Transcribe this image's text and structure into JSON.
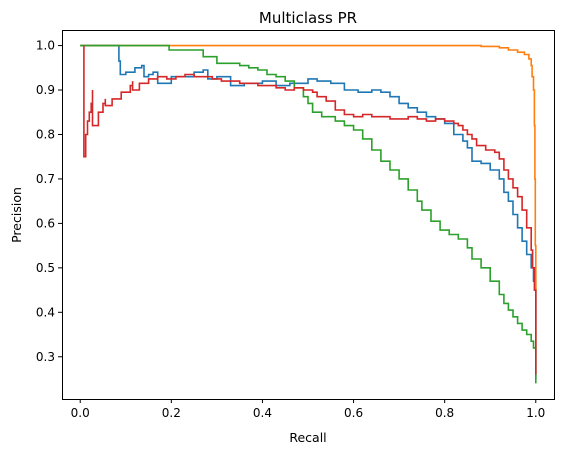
{
  "chart_data": {
    "type": "line",
    "title": "Multiclass PR",
    "xlabel": "Recall",
    "ylabel": "Precision",
    "xlim": [
      -0.04,
      1.04
    ],
    "ylim": [
      0.205,
      1.035
    ],
    "xticks": [
      0.0,
      0.2,
      0.4,
      0.6,
      0.8,
      1.0
    ],
    "xtick_labels": [
      "0.0",
      "0.2",
      "0.4",
      "0.6",
      "0.8",
      "1.0"
    ],
    "yticks": [
      0.3,
      0.4,
      0.5,
      0.6,
      0.7,
      0.8,
      0.9,
      1.0
    ],
    "ytick_labels": [
      "0.3",
      "0.4",
      "0.5",
      "0.6",
      "0.7",
      "0.8",
      "0.9",
      "1.0"
    ],
    "grid": false,
    "legend": "none",
    "series": [
      {
        "color": "#1f77b4",
        "points": [
          [
            0.0,
            1.0
          ],
          [
            0.085,
            1.0
          ],
          [
            0.085,
            0.965
          ],
          [
            0.088,
            0.935
          ],
          [
            0.1,
            0.94
          ],
          [
            0.12,
            0.95
          ],
          [
            0.135,
            0.955
          ],
          [
            0.14,
            0.93
          ],
          [
            0.15,
            0.935
          ],
          [
            0.16,
            0.94
          ],
          [
            0.17,
            0.915
          ],
          [
            0.2,
            0.93
          ],
          [
            0.25,
            0.94
          ],
          [
            0.27,
            0.945
          ],
          [
            0.28,
            0.925
          ],
          [
            0.3,
            0.93
          ],
          [
            0.33,
            0.91
          ],
          [
            0.36,
            0.915
          ],
          [
            0.4,
            0.92
          ],
          [
            0.43,
            0.91
          ],
          [
            0.46,
            0.915
          ],
          [
            0.5,
            0.925
          ],
          [
            0.52,
            0.92
          ],
          [
            0.55,
            0.915
          ],
          [
            0.58,
            0.9
          ],
          [
            0.61,
            0.895
          ],
          [
            0.64,
            0.9
          ],
          [
            0.66,
            0.895
          ],
          [
            0.68,
            0.885
          ],
          [
            0.7,
            0.87
          ],
          [
            0.72,
            0.86
          ],
          [
            0.74,
            0.85
          ],
          [
            0.76,
            0.84
          ],
          [
            0.78,
            0.835
          ],
          [
            0.8,
            0.825
          ],
          [
            0.82,
            0.8
          ],
          [
            0.84,
            0.785
          ],
          [
            0.85,
            0.77
          ],
          [
            0.86,
            0.74
          ],
          [
            0.88,
            0.735
          ],
          [
            0.9,
            0.72
          ],
          [
            0.92,
            0.7
          ],
          [
            0.93,
            0.67
          ],
          [
            0.94,
            0.65
          ],
          [
            0.95,
            0.62
          ],
          [
            0.96,
            0.59
          ],
          [
            0.97,
            0.56
          ],
          [
            0.98,
            0.53
          ],
          [
            0.99,
            0.5
          ],
          [
            0.995,
            0.47
          ],
          [
            1.0,
            0.41
          ],
          [
            1.0,
            0.25
          ]
        ]
      },
      {
        "color": "#ff7f0e",
        "points": [
          [
            0.0,
            1.0
          ],
          [
            0.86,
            1.0
          ],
          [
            0.88,
            0.998
          ],
          [
            0.92,
            0.995
          ],
          [
            0.94,
            0.99
          ],
          [
            0.96,
            0.985
          ],
          [
            0.975,
            0.98
          ],
          [
            0.985,
            0.97
          ],
          [
            0.99,
            0.955
          ],
          [
            0.992,
            0.93
          ],
          [
            0.995,
            0.9
          ],
          [
            0.997,
            0.82
          ],
          [
            0.998,
            0.7
          ],
          [
            0.999,
            0.55
          ],
          [
            1.0,
            0.41
          ],
          [
            1.0,
            0.32
          ]
        ]
      },
      {
        "color": "#2ca02c",
        "points": [
          [
            0.0,
            1.0
          ],
          [
            0.195,
            1.0
          ],
          [
            0.195,
            0.99
          ],
          [
            0.27,
            0.99
          ],
          [
            0.27,
            0.975
          ],
          [
            0.3,
            0.975
          ],
          [
            0.3,
            0.96
          ],
          [
            0.35,
            0.955
          ],
          [
            0.37,
            0.95
          ],
          [
            0.39,
            0.945
          ],
          [
            0.41,
            0.935
          ],
          [
            0.43,
            0.93
          ],
          [
            0.45,
            0.92
          ],
          [
            0.47,
            0.905
          ],
          [
            0.49,
            0.885
          ],
          [
            0.5,
            0.87
          ],
          [
            0.51,
            0.85
          ],
          [
            0.53,
            0.84
          ],
          [
            0.56,
            0.83
          ],
          [
            0.58,
            0.82
          ],
          [
            0.6,
            0.81
          ],
          [
            0.62,
            0.79
          ],
          [
            0.64,
            0.765
          ],
          [
            0.66,
            0.74
          ],
          [
            0.68,
            0.72
          ],
          [
            0.7,
            0.7
          ],
          [
            0.72,
            0.675
          ],
          [
            0.74,
            0.65
          ],
          [
            0.75,
            0.63
          ],
          [
            0.77,
            0.605
          ],
          [
            0.79,
            0.585
          ],
          [
            0.81,
            0.575
          ],
          [
            0.83,
            0.565
          ],
          [
            0.85,
            0.545
          ],
          [
            0.86,
            0.52
          ],
          [
            0.88,
            0.5
          ],
          [
            0.9,
            0.47
          ],
          [
            0.92,
            0.44
          ],
          [
            0.93,
            0.42
          ],
          [
            0.94,
            0.405
          ],
          [
            0.95,
            0.39
          ],
          [
            0.96,
            0.375
          ],
          [
            0.97,
            0.36
          ],
          [
            0.98,
            0.35
          ],
          [
            0.99,
            0.335
          ],
          [
            0.995,
            0.32
          ],
          [
            1.0,
            0.24
          ]
        ]
      },
      {
        "color": "#d62728",
        "points": [
          [
            0.008,
            1.0
          ],
          [
            0.008,
            0.75
          ],
          [
            0.012,
            0.8
          ],
          [
            0.016,
            0.83
          ],
          [
            0.02,
            0.85
          ],
          [
            0.024,
            0.87
          ],
          [
            0.027,
            0.9
          ],
          [
            0.027,
            0.82
          ],
          [
            0.04,
            0.85
          ],
          [
            0.05,
            0.87
          ],
          [
            0.055,
            0.88
          ],
          [
            0.055,
            0.865
          ],
          [
            0.07,
            0.88
          ],
          [
            0.09,
            0.895
          ],
          [
            0.11,
            0.91
          ],
          [
            0.115,
            0.92
          ],
          [
            0.115,
            0.9
          ],
          [
            0.13,
            0.915
          ],
          [
            0.15,
            0.925
          ],
          [
            0.17,
            0.93
          ],
          [
            0.19,
            0.925
          ],
          [
            0.21,
            0.93
          ],
          [
            0.23,
            0.935
          ],
          [
            0.25,
            0.93
          ],
          [
            0.27,
            0.93
          ],
          [
            0.29,
            0.925
          ],
          [
            0.31,
            0.92
          ],
          [
            0.33,
            0.92
          ],
          [
            0.35,
            0.915
          ],
          [
            0.37,
            0.915
          ],
          [
            0.39,
            0.91
          ],
          [
            0.41,
            0.91
          ],
          [
            0.43,
            0.905
          ],
          [
            0.45,
            0.9
          ],
          [
            0.47,
            0.905
          ],
          [
            0.49,
            0.9
          ],
          [
            0.51,
            0.895
          ],
          [
            0.52,
            0.885
          ],
          [
            0.54,
            0.875
          ],
          [
            0.56,
            0.855
          ],
          [
            0.58,
            0.845
          ],
          [
            0.6,
            0.84
          ],
          [
            0.62,
            0.845
          ],
          [
            0.64,
            0.84
          ],
          [
            0.66,
            0.84
          ],
          [
            0.68,
            0.835
          ],
          [
            0.7,
            0.835
          ],
          [
            0.72,
            0.84
          ],
          [
            0.74,
            0.835
          ],
          [
            0.76,
            0.83
          ],
          [
            0.78,
            0.835
          ],
          [
            0.8,
            0.83
          ],
          [
            0.82,
            0.825
          ],
          [
            0.83,
            0.82
          ],
          [
            0.84,
            0.81
          ],
          [
            0.85,
            0.8
          ],
          [
            0.86,
            0.79
          ],
          [
            0.87,
            0.775
          ],
          [
            0.89,
            0.765
          ],
          [
            0.91,
            0.76
          ],
          [
            0.92,
            0.745
          ],
          [
            0.93,
            0.72
          ],
          [
            0.94,
            0.7
          ],
          [
            0.95,
            0.68
          ],
          [
            0.96,
            0.66
          ],
          [
            0.97,
            0.63
          ],
          [
            0.98,
            0.59
          ],
          [
            0.99,
            0.54
          ],
          [
            0.993,
            0.5
          ],
          [
            0.997,
            0.45
          ],
          [
            1.0,
            0.39
          ],
          [
            1.0,
            0.26
          ]
        ]
      }
    ]
  }
}
